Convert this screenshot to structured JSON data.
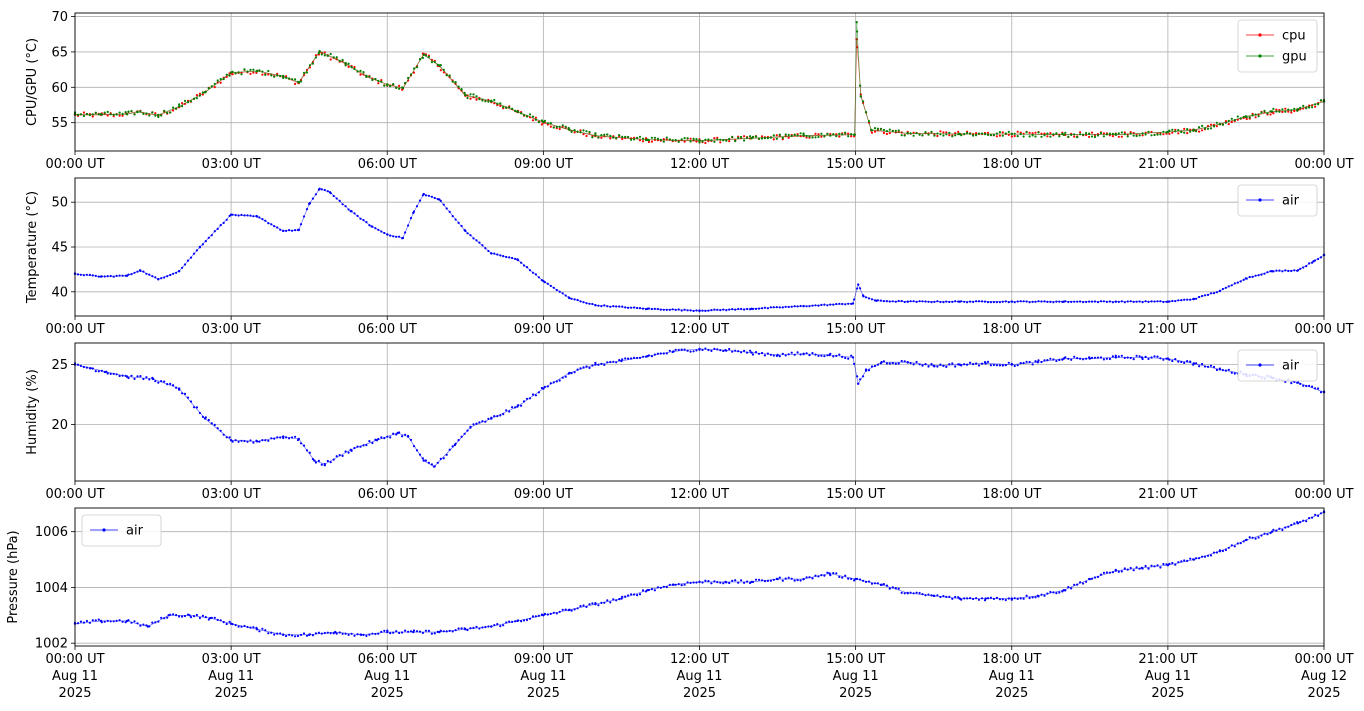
{
  "chart_data": [
    {
      "type": "line",
      "ylabel": "CPU/GPU (°C)",
      "ylim": [
        51,
        70.5
      ],
      "yticks": [
        55,
        60,
        65,
        70
      ],
      "xticks": [
        "00:00 UT",
        "03:00 UT",
        "06:00 UT",
        "09:00 UT",
        "12:00 UT",
        "15:00 UT",
        "18:00 UT",
        "21:00 UT",
        "00:00 UT"
      ],
      "grid": true,
      "legend_position": "top-right",
      "series": [
        {
          "name": "cpu",
          "color": "#ff0000",
          "x_hours": [
            0,
            0.5,
            1,
            1.2,
            1.6,
            2,
            2.5,
            3,
            3.5,
            4,
            4.3,
            4.7,
            5.2,
            5.6,
            6,
            6.3,
            6.7,
            7,
            7.5,
            8,
            8.5,
            9,
            9.5,
            10,
            11,
            12,
            13,
            14,
            14.98,
            15.02,
            15.1,
            15.3,
            16,
            17,
            18,
            19,
            20,
            21,
            21.5,
            22,
            22.5,
            23,
            23.5,
            24
          ],
          "y": [
            56.1,
            56.1,
            56.2,
            56.6,
            56.0,
            57.2,
            59.3,
            62.0,
            62.3,
            61.5,
            60.6,
            65.0,
            63.3,
            61.5,
            60.4,
            59.8,
            64.7,
            63.0,
            58.8,
            58.0,
            56.5,
            55.0,
            54.0,
            53.1,
            52.6,
            52.4,
            52.8,
            53.1,
            53.3,
            66.8,
            59.0,
            53.9,
            53.5,
            53.4,
            53.4,
            53.3,
            53.3,
            53.7,
            53.9,
            54.8,
            55.8,
            56.5,
            56.8,
            58.0
          ]
        },
        {
          "name": "gpu",
          "color": "#008000",
          "x_hours": [
            0,
            0.5,
            1,
            1.2,
            1.6,
            2,
            2.5,
            3,
            3.5,
            4,
            4.3,
            4.7,
            5.2,
            5.6,
            6,
            6.3,
            6.7,
            7,
            7.5,
            8,
            8.5,
            9,
            9.5,
            10,
            11,
            12,
            13,
            14,
            14.98,
            15.02,
            15.1,
            15.3,
            16,
            17,
            18,
            19,
            20,
            21,
            21.5,
            22,
            22.5,
            23,
            23.5,
            24
          ],
          "y": [
            56.2,
            56.2,
            56.2,
            56.5,
            56.1,
            57.3,
            59.3,
            62.1,
            62.3,
            61.6,
            60.7,
            65.1,
            63.4,
            61.6,
            60.4,
            59.9,
            64.6,
            63.1,
            58.9,
            58.1,
            56.6,
            55.1,
            54.0,
            53.2,
            52.6,
            52.5,
            52.8,
            53.2,
            53.3,
            69.2,
            58.7,
            54.0,
            53.5,
            53.4,
            53.4,
            53.3,
            53.3,
            53.7,
            54.0,
            54.8,
            55.9,
            56.6,
            56.9,
            58.0
          ]
        }
      ]
    },
    {
      "type": "line",
      "ylabel": "Temperature (°C)",
      "ylim": [
        37.3,
        52.7
      ],
      "yticks": [
        40,
        45,
        50
      ],
      "xticks": [
        "00:00 UT",
        "03:00 UT",
        "06:00 UT",
        "09:00 UT",
        "12:00 UT",
        "15:00 UT",
        "18:00 UT",
        "21:00 UT",
        "00:00 UT"
      ],
      "grid": true,
      "legend_position": "top-right",
      "series": [
        {
          "name": "air",
          "color": "#0000ff",
          "x_hours": [
            0,
            0.5,
            1,
            1.25,
            1.6,
            2,
            2.4,
            3,
            3.5,
            4,
            4.3,
            4.5,
            4.7,
            4.9,
            5.3,
            5.7,
            6,
            6.3,
            6.5,
            6.7,
            7,
            7.5,
            8,
            8.5,
            9,
            9.5,
            10,
            11,
            12,
            13,
            14,
            14.95,
            15.05,
            15.15,
            15.4,
            16,
            17,
            18,
            19,
            20,
            21,
            21.5,
            22,
            22.5,
            23,
            23.5,
            23.8,
            24
          ],
          "y": [
            42.0,
            41.7,
            41.8,
            42.4,
            41.4,
            42.3,
            45.0,
            48.6,
            48.4,
            46.8,
            46.9,
            49.8,
            51.5,
            51.1,
            49.0,
            47.3,
            46.4,
            46.0,
            48.8,
            50.9,
            50.3,
            46.8,
            44.3,
            43.6,
            41.2,
            39.3,
            38.5,
            38.1,
            37.9,
            38.1,
            38.4,
            38.7,
            40.8,
            39.5,
            39.0,
            38.9,
            38.9,
            38.9,
            38.9,
            38.9,
            38.9,
            39.2,
            40.1,
            41.5,
            42.3,
            42.4,
            43.4,
            44.1
          ]
        }
      ]
    },
    {
      "type": "line",
      "ylabel": "Humidity (%)",
      "ylim": [
        15.3,
        26.8
      ],
      "yticks": [
        20,
        25
      ],
      "xticks": [
        "00:00 UT",
        "03:00 UT",
        "06:00 UT",
        "09:00 UT",
        "12:00 UT",
        "15:00 UT",
        "18:00 UT",
        "21:00 UT",
        "00:00 UT"
      ],
      "grid": true,
      "legend_position": "top-right",
      "series": [
        {
          "name": "air",
          "color": "#0000ff",
          "x_hours": [
            0,
            0.3,
            0.6,
            1,
            1.5,
            2,
            2.5,
            3,
            3.5,
            4,
            4.3,
            4.6,
            4.8,
            5.3,
            5.8,
            6.2,
            6.4,
            6.7,
            6.9,
            7.3,
            7.6,
            8,
            8.5,
            9,
            9.5,
            10,
            10.5,
            11,
            11.5,
            12,
            12.5,
            13,
            13.5,
            14,
            14.5,
            14.95,
            15.05,
            15.2,
            15.5,
            16,
            16.5,
            17,
            17.5,
            18,
            18.5,
            19,
            19.5,
            20,
            20.5,
            21,
            21.5,
            22,
            22.5,
            23,
            23.5,
            24
          ],
          "y": [
            25.0,
            24.7,
            24.4,
            24.0,
            23.8,
            23.0,
            20.5,
            18.7,
            18.6,
            19.0,
            18.8,
            17.0,
            16.7,
            17.9,
            18.7,
            19.3,
            19.0,
            17.0,
            16.5,
            18.3,
            19.8,
            20.5,
            21.5,
            23.0,
            24.3,
            25.0,
            25.3,
            25.7,
            26.1,
            26.3,
            26.2,
            26.0,
            25.8,
            25.9,
            25.8,
            25.6,
            23.4,
            24.5,
            25.2,
            25.2,
            24.9,
            25.0,
            25.1,
            25.0,
            25.2,
            25.5,
            25.5,
            25.6,
            25.6,
            25.5,
            25.1,
            24.6,
            24.2,
            23.9,
            23.5,
            22.7
          ]
        }
      ]
    },
    {
      "type": "line",
      "ylabel": "Pressure (hPa)",
      "ylim": [
        1001.9,
        1006.85
      ],
      "yticks": [
        1002,
        1004,
        1006
      ],
      "xticks": [
        "00:00 UT",
        "03:00 UT",
        "06:00 UT",
        "09:00 UT",
        "12:00 UT",
        "15:00 UT",
        "18:00 UT",
        "21:00 UT",
        "00:00 UT"
      ],
      "xtick_lines2": [
        "Aug 11",
        "Aug 11",
        "Aug 11",
        "Aug 11",
        "Aug 11",
        "Aug 11",
        "Aug 11",
        "Aug 11",
        "Aug 12"
      ],
      "xtick_lines3": [
        "2025",
        "2025",
        "2025",
        "2025",
        "2025",
        "2025",
        "2025",
        "2025",
        "2025"
      ],
      "grid": true,
      "legend_position": "top-left",
      "series": [
        {
          "name": "air",
          "color": "#0000ff",
          "x_hours": [
            0,
            0.5,
            1,
            1.4,
            1.8,
            2.2,
            2.6,
            3,
            3.5,
            4,
            4.5,
            5,
            5.5,
            6,
            6.5,
            7,
            7.5,
            8,
            8.5,
            9,
            9.5,
            10,
            10.5,
            11,
            11.5,
            12,
            12.5,
            13,
            13.5,
            14,
            14.5,
            15,
            15.5,
            16,
            16.5,
            17,
            17.5,
            18,
            18.5,
            19,
            19.5,
            20,
            20.5,
            21,
            21.5,
            22,
            22.5,
            23,
            23.5,
            24
          ],
          "y": [
            1002.7,
            1002.8,
            1002.8,
            1002.6,
            1003.0,
            1003.0,
            1002.9,
            1002.7,
            1002.5,
            1002.3,
            1002.3,
            1002.4,
            1002.3,
            1002.4,
            1002.4,
            1002.4,
            1002.5,
            1002.6,
            1002.8,
            1003.0,
            1003.2,
            1003.4,
            1003.6,
            1003.9,
            1004.1,
            1004.2,
            1004.2,
            1004.2,
            1004.3,
            1004.3,
            1004.5,
            1004.3,
            1004.1,
            1003.8,
            1003.7,
            1003.6,
            1003.6,
            1003.6,
            1003.7,
            1003.9,
            1004.3,
            1004.6,
            1004.7,
            1004.8,
            1005.0,
            1005.3,
            1005.7,
            1006.0,
            1006.3,
            1006.7
          ]
        }
      ]
    }
  ]
}
